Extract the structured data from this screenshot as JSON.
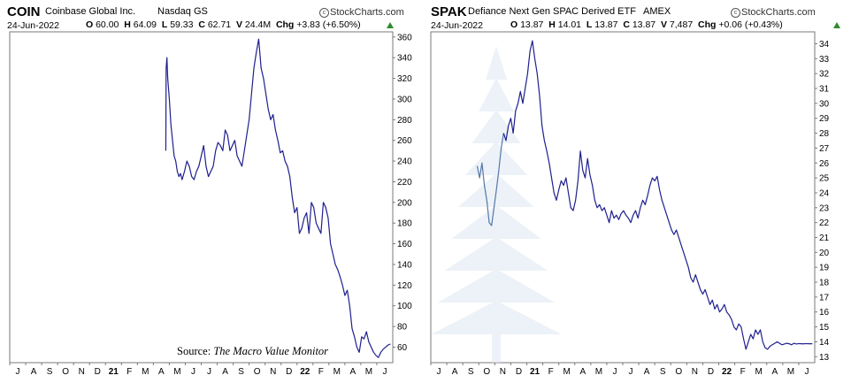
{
  "chart_data": [
    {
      "type": "line",
      "symbol": "COIN",
      "name": "Coinbase Global Inc.",
      "exchange": "Nasdaq GS",
      "brand": "StockCharts.com",
      "date": "24-Jun-2022",
      "ohlc": {
        "O": "60.00",
        "H": "64.09",
        "L": "59.33",
        "C": "62.71",
        "V": "24.4M",
        "Chg": "+3.83 (+6.50%)"
      },
      "source_prefix": "Source: ",
      "source_italic": "The Macro Value Monitor",
      "ylim": [
        45,
        365
      ],
      "y_ticks": [
        60,
        80,
        100,
        120,
        140,
        160,
        180,
        200,
        220,
        240,
        260,
        280,
        300,
        320,
        340,
        360
      ],
      "x_ticks": [
        "J",
        "A",
        "S",
        "O",
        "N",
        "D",
        "21",
        "F",
        "M",
        "A",
        "M",
        "J",
        "J",
        "A",
        "S",
        "O",
        "N",
        "D",
        "22",
        "F",
        "M",
        "A",
        "M",
        "J"
      ],
      "x_bold": [
        "21",
        "22"
      ],
      "line_color": "#1f1f8f",
      "series": [
        {
          "x": [
            9.78,
            9.8,
            9.85,
            9.9,
            10.0,
            10.1,
            10.2,
            10.3,
            10.4,
            10.5,
            10.6,
            10.7,
            10.8,
            10.95,
            11.1,
            11.25,
            11.4,
            11.55,
            11.7,
            11.85,
            12.0,
            12.15,
            12.3,
            12.45,
            12.6,
            12.75,
            12.9,
            13.05,
            13.2,
            13.35,
            13.5,
            13.65,
            13.8,
            13.95,
            14.1,
            14.25,
            14.4,
            14.55,
            14.7,
            14.85,
            15.0,
            15.15,
            15.3,
            15.45,
            15.6,
            15.75,
            15.9,
            16.05,
            16.2,
            16.35,
            16.5,
            16.65,
            16.8,
            16.95,
            17.1,
            17.25,
            17.4,
            17.55,
            17.7,
            17.85,
            18.0,
            18.15,
            18.3,
            18.45,
            18.6,
            18.75,
            18.9,
            19.05,
            19.2,
            19.35,
            19.5,
            19.65,
            19.8,
            19.95,
            20.1,
            20.25,
            20.4,
            20.55,
            20.7,
            20.85,
            21.0,
            21.15,
            21.3,
            21.45,
            21.6,
            21.75,
            21.9,
            22.05,
            22.2,
            22.35,
            22.5,
            22.65,
            22.8,
            22.95,
            23.1,
            23.25,
            23.4,
            23.55,
            23.7,
            23.85
          ],
          "y": [
            250,
            330,
            340,
            320,
            300,
            275,
            260,
            245,
            240,
            230,
            225,
            228,
            222,
            230,
            240,
            235,
            225,
            222,
            230,
            235,
            245,
            255,
            235,
            225,
            230,
            235,
            250,
            258,
            255,
            250,
            270,
            265,
            250,
            255,
            260,
            245,
            240,
            235,
            250,
            265,
            280,
            305,
            330,
            345,
            358,
            330,
            320,
            305,
            290,
            280,
            285,
            270,
            260,
            248,
            250,
            240,
            235,
            225,
            205,
            190,
            195,
            170,
            175,
            185,
            190,
            170,
            200,
            195,
            180,
            175,
            170,
            200,
            195,
            185,
            160,
            150,
            140,
            135,
            128,
            120,
            110,
            115,
            100,
            78,
            70,
            60,
            55,
            70,
            68,
            75,
            65,
            60,
            55,
            52,
            50,
            55,
            58,
            60,
            62,
            63
          ]
        }
      ]
    },
    {
      "type": "line",
      "symbol": "SPAK",
      "name": "Defiance Next Gen SPAC Derived ETF",
      "exchange": "AMEX",
      "brand": "StockCharts.com",
      "date": "24-Jun-2022",
      "ohlc": {
        "O": "13.87",
        "H": "14.01",
        "L": "13.87",
        "C": "13.87",
        "V": "7,487",
        "Chg": "+0.06 (+0.43%)"
      },
      "ylim": [
        12.6,
        34.8
      ],
      "y_ticks": [
        13,
        14,
        15,
        16,
        17,
        18,
        19,
        20,
        21,
        22,
        23,
        24,
        25,
        26,
        27,
        28,
        29,
        30,
        31,
        32,
        33,
        34
      ],
      "x_ticks": [
        "J",
        "A",
        "S",
        "O",
        "N",
        "D",
        "21",
        "F",
        "M",
        "A",
        "M",
        "J",
        "J",
        "A",
        "S",
        "O",
        "N",
        "D",
        "22",
        "F",
        "M",
        "A",
        "M",
        "J"
      ],
      "x_bold": [
        "21",
        "22"
      ],
      "line_color": "#1f1f8f",
      "pre_color": "#5577aa",
      "series": [
        {
          "x": [
            2.9,
            3.05,
            3.2,
            3.35,
            3.5,
            3.65,
            3.8,
            3.95,
            4.1,
            4.25,
            4.4,
            4.55
          ],
          "y": [
            25.8,
            25.0,
            26.0,
            24.5,
            23.5,
            22.0,
            21.8,
            23.0,
            24.2,
            25.5,
            27.0,
            28.0
          ]
        },
        {
          "x": [
            4.55,
            4.7,
            4.85,
            5.0,
            5.15,
            5.3,
            5.45,
            5.6,
            5.75,
            5.9,
            6.05,
            6.2,
            6.35,
            6.5,
            6.65,
            6.8,
            6.95,
            7.1,
            7.25,
            7.4,
            7.55,
            7.7,
            7.85,
            8.0,
            8.15,
            8.3,
            8.45,
            8.6,
            8.75,
            8.9,
            9.05,
            9.2,
            9.35,
            9.5,
            9.65,
            9.8,
            9.95,
            10.1,
            10.25,
            10.4,
            10.55,
            10.7,
            10.85,
            11.0,
            11.15,
            11.3,
            11.45,
            11.6,
            11.75,
            11.9,
            12.05,
            12.2,
            12.35,
            12.5,
            12.65,
            12.8,
            12.95,
            13.1,
            13.25,
            13.4,
            13.55,
            13.7,
            13.85,
            14.0,
            14.15,
            14.3,
            14.45,
            14.6,
            14.75,
            14.9,
            15.05,
            15.2,
            15.35,
            15.5,
            15.65,
            15.8,
            15.95,
            16.1,
            16.25,
            16.4,
            16.55,
            16.7,
            16.85,
            17.0,
            17.15,
            17.3,
            17.45,
            17.6,
            17.75,
            17.9,
            18.05,
            18.2,
            18.35,
            18.5,
            18.65,
            18.8,
            18.95,
            19.1,
            19.25,
            19.4,
            19.55,
            19.7,
            19.85,
            20.0,
            20.15,
            20.3,
            20.45,
            20.6,
            20.75,
            20.9,
            21.05,
            21.2,
            21.35,
            21.5,
            21.65,
            21.8,
            21.95,
            22.1,
            22.25,
            22.4,
            22.55,
            22.7,
            22.85,
            23.0,
            23.15,
            23.3,
            23.45,
            23.6,
            23.75,
            23.85
          ],
          "y": [
            28.0,
            27.5,
            28.5,
            29.0,
            28.0,
            29.5,
            30.0,
            30.8,
            30.0,
            31.0,
            32.0,
            33.5,
            34.2,
            33.0,
            32.0,
            30.5,
            28.5,
            27.5,
            26.8,
            26.0,
            25.0,
            24.0,
            23.5,
            24.2,
            24.8,
            24.5,
            25.0,
            24.0,
            23.0,
            22.8,
            23.5,
            24.8,
            26.8,
            25.5,
            25.0,
            26.3,
            25.2,
            24.5,
            23.5,
            23.0,
            23.2,
            22.8,
            23.0,
            22.5,
            22.0,
            22.8,
            22.3,
            22.5,
            22.2,
            22.6,
            22.8,
            22.5,
            22.3,
            22.0,
            22.5,
            22.8,
            22.3,
            23.0,
            23.5,
            23.2,
            23.8,
            24.5,
            25.0,
            24.8,
            25.1,
            24.2,
            23.5,
            23.0,
            22.5,
            22.0,
            21.5,
            21.2,
            21.5,
            21.0,
            20.5,
            20.0,
            19.5,
            19.0,
            18.3,
            18.0,
            18.5,
            18.0,
            17.5,
            17.2,
            17.5,
            17.0,
            16.5,
            16.8,
            16.2,
            16.5,
            16.0,
            16.2,
            16.5,
            16.0,
            15.8,
            15.5,
            15.0,
            14.8,
            15.2,
            15.0,
            14.2,
            13.5,
            14.0,
            14.5,
            14.2,
            14.8,
            14.5,
            14.8,
            14.0,
            13.6,
            13.5,
            13.7,
            13.8,
            13.9,
            14.0,
            13.9,
            13.8,
            13.85,
            13.9,
            13.87,
            13.8,
            13.9,
            13.85,
            13.88,
            13.87,
            13.86,
            13.88,
            13.87,
            13.87,
            13.87
          ]
        }
      ]
    }
  ]
}
